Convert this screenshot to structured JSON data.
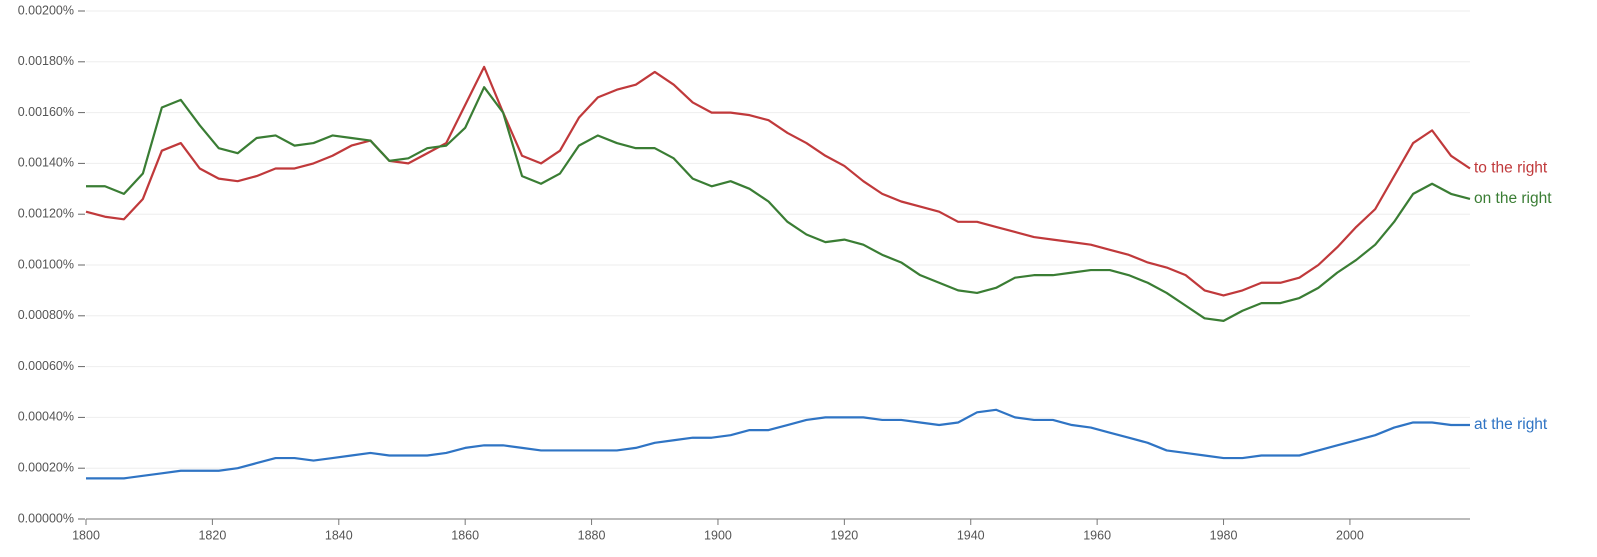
{
  "chart_data": {
    "type": "line",
    "x": [
      1800,
      1803,
      1806,
      1809,
      1812,
      1815,
      1818,
      1821,
      1824,
      1827,
      1830,
      1833,
      1836,
      1839,
      1842,
      1845,
      1848,
      1851,
      1854,
      1857,
      1860,
      1863,
      1866,
      1869,
      1872,
      1875,
      1878,
      1881,
      1884,
      1887,
      1890,
      1893,
      1896,
      1899,
      1902,
      1905,
      1908,
      1911,
      1914,
      1917,
      1920,
      1923,
      1926,
      1929,
      1932,
      1935,
      1938,
      1941,
      1944,
      1947,
      1950,
      1953,
      1956,
      1959,
      1962,
      1965,
      1968,
      1971,
      1974,
      1977,
      1980,
      1983,
      1986,
      1989,
      1992,
      1995,
      1998,
      2001,
      2004,
      2007,
      2010,
      2013,
      2016,
      2019
    ],
    "series": [
      {
        "name": "to the right",
        "color": "#c0393b",
        "values": [
          0.00121,
          0.00119,
          0.00118,
          0.00126,
          0.00145,
          0.00148,
          0.00138,
          0.00134,
          0.00133,
          0.00135,
          0.00138,
          0.00138,
          0.0014,
          0.00143,
          0.00147,
          0.00149,
          0.00141,
          0.0014,
          0.00144,
          0.00148,
          0.00163,
          0.00178,
          0.0016,
          0.00143,
          0.0014,
          0.00145,
          0.00158,
          0.00166,
          0.00169,
          0.00171,
          0.00176,
          0.00171,
          0.00164,
          0.0016,
          0.0016,
          0.00159,
          0.00157,
          0.00152,
          0.00148,
          0.00143,
          0.00139,
          0.00133,
          0.00128,
          0.00125,
          0.00123,
          0.00121,
          0.00117,
          0.00117,
          0.00115,
          0.00113,
          0.00111,
          0.0011,
          0.00109,
          0.00108,
          0.00106,
          0.00104,
          0.00101,
          0.00099,
          0.00096,
          0.0009,
          0.00088,
          0.0009,
          0.00093,
          0.00093,
          0.00095,
          0.001,
          0.00107,
          0.00115,
          0.00122,
          0.00135,
          0.00148,
          0.00153,
          0.00143,
          0.00138
        ]
      },
      {
        "name": "on the right",
        "color": "#3a7d34",
        "values": [
          0.00131,
          0.00131,
          0.00128,
          0.00136,
          0.00162,
          0.00165,
          0.00155,
          0.00146,
          0.00144,
          0.0015,
          0.00151,
          0.00147,
          0.00148,
          0.00151,
          0.0015,
          0.00149,
          0.00141,
          0.00142,
          0.00146,
          0.00147,
          0.00154,
          0.0017,
          0.0016,
          0.00135,
          0.00132,
          0.00136,
          0.00147,
          0.00151,
          0.00148,
          0.00146,
          0.00146,
          0.00142,
          0.00134,
          0.00131,
          0.00133,
          0.0013,
          0.00125,
          0.00117,
          0.00112,
          0.00109,
          0.0011,
          0.00108,
          0.00104,
          0.00101,
          0.00096,
          0.00093,
          0.0009,
          0.00089,
          0.00091,
          0.00095,
          0.00096,
          0.00096,
          0.00097,
          0.00098,
          0.00098,
          0.00096,
          0.00093,
          0.00089,
          0.00084,
          0.00079,
          0.00078,
          0.00082,
          0.00085,
          0.00085,
          0.00087,
          0.00091,
          0.00097,
          0.00102,
          0.00108,
          0.00117,
          0.00128,
          0.00132,
          0.00128,
          0.00126
        ]
      },
      {
        "name": "at the right",
        "color": "#2f74c4",
        "values": [
          0.00016,
          0.00016,
          0.00016,
          0.00017,
          0.00018,
          0.00019,
          0.00019,
          0.00019,
          0.0002,
          0.00022,
          0.00024,
          0.00024,
          0.00023,
          0.00024,
          0.00025,
          0.00026,
          0.00025,
          0.00025,
          0.00025,
          0.00026,
          0.00028,
          0.00029,
          0.00029,
          0.00028,
          0.00027,
          0.00027,
          0.00027,
          0.00027,
          0.00027,
          0.00028,
          0.0003,
          0.00031,
          0.00032,
          0.00032,
          0.00033,
          0.00035,
          0.00035,
          0.00037,
          0.00039,
          0.0004,
          0.0004,
          0.0004,
          0.00039,
          0.00039,
          0.00038,
          0.00037,
          0.00038,
          0.00042,
          0.00043,
          0.0004,
          0.00039,
          0.00039,
          0.00037,
          0.00036,
          0.00034,
          0.00032,
          0.0003,
          0.00027,
          0.00026,
          0.00025,
          0.00024,
          0.00024,
          0.00025,
          0.00025,
          0.00025,
          0.00027,
          0.00029,
          0.00031,
          0.00033,
          0.00036,
          0.00038,
          0.00038,
          0.00037,
          0.00037
        ]
      }
    ],
    "xlim": [
      1800,
      2019
    ],
    "xticks": [
      1800,
      1820,
      1840,
      1860,
      1880,
      1900,
      1920,
      1940,
      1960,
      1980,
      2000
    ],
    "ylim": [
      0,
      0.002
    ],
    "yticks": [
      {
        "value": 0,
        "label": "0.00000%"
      },
      {
        "value": 0.0002,
        "label": "0.00020%"
      },
      {
        "value": 0.0004,
        "label": "0.00040%"
      },
      {
        "value": 0.0006,
        "label": "0.00060%"
      },
      {
        "value": 0.0008,
        "label": "0.00080%"
      },
      {
        "value": 0.001,
        "label": "0.00100%"
      },
      {
        "value": 0.0012,
        "label": "0.00120%"
      },
      {
        "value": 0.0014,
        "label": "0.00140%"
      },
      {
        "value": 0.0016,
        "label": "0.00160%"
      },
      {
        "value": 0.0018,
        "label": "0.00180%"
      },
      {
        "value": 0.002,
        "label": "0.00200%"
      }
    ],
    "grid": true
  }
}
